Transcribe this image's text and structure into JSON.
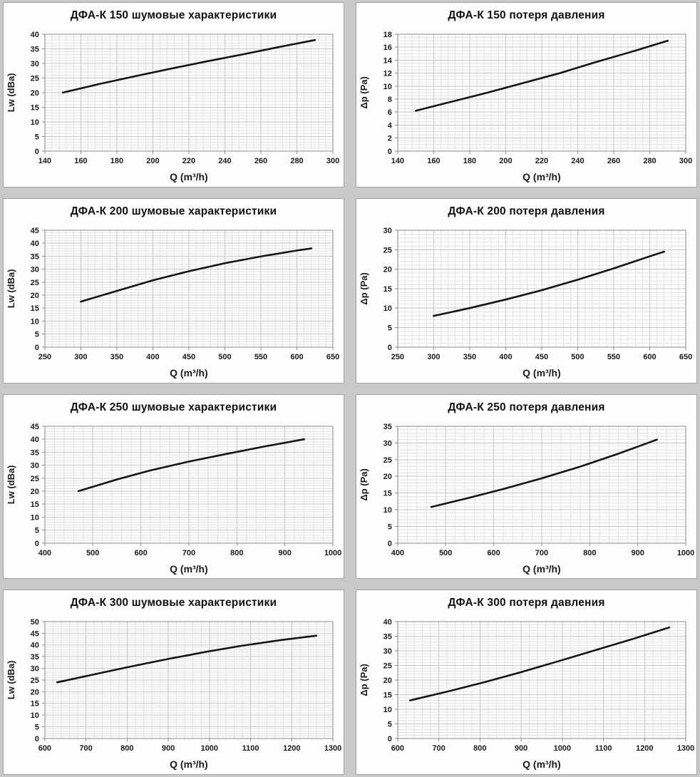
{
  "page": {
    "background_color": "#c9c9c9",
    "panel_background": "#fdfdfd",
    "panel_border_color": "#a3a3a3",
    "grid_minor_color": "#e4e4e4",
    "grid_major_color": "#c6c6c6",
    "plot_border_color": "#8c8c8c",
    "curve_color": "#141414",
    "text_color": "#1a1a1a"
  },
  "chart_data": [
    {
      "type": "line",
      "title": "ДФА-К 150 шумовые характеристики",
      "xlabel": "Q (m³/h)",
      "ylabel": "Lw (dBa)",
      "xlim": [
        140,
        300
      ],
      "xstep": 20,
      "xminor": 4,
      "ylim": [
        0,
        40
      ],
      "ystep": 5,
      "yminor": 1,
      "grid": true,
      "legend": null,
      "points": [
        [
          150,
          20
        ],
        [
          170,
          22.9
        ],
        [
          190,
          25.6
        ],
        [
          210,
          28.2
        ],
        [
          230,
          30.7
        ],
        [
          250,
          33.1
        ],
        [
          270,
          35.6
        ],
        [
          290,
          38
        ]
      ]
    },
    {
      "type": "line",
      "title": "ДФА-К 150 потеря давления",
      "xlabel": "Q (m³/h)",
      "ylabel": "Δp (Pa)",
      "xlim": [
        140,
        300
      ],
      "xstep": 20,
      "xminor": 4,
      "ylim": [
        0,
        18
      ],
      "ystep": 2,
      "yminor": 0.5,
      "grid": true,
      "legend": null,
      "points": [
        [
          150,
          6.2
        ],
        [
          170,
          7.6
        ],
        [
          190,
          9.0
        ],
        [
          210,
          10.5
        ],
        [
          230,
          12.0
        ],
        [
          250,
          13.7
        ],
        [
          270,
          15.3
        ],
        [
          290,
          17
        ]
      ]
    },
    {
      "type": "line",
      "title": "ДФА-К 200 шумовые характеристики",
      "xlabel": "Q (m³/h)",
      "ylabel": "Lw (dBa)",
      "xlim": [
        250,
        650
      ],
      "xstep": 50,
      "xminor": 10,
      "ylim": [
        0,
        45
      ],
      "ystep": 5,
      "yminor": 1,
      "grid": true,
      "legend": null,
      "points": [
        [
          300,
          17.5
        ],
        [
          350,
          21.6
        ],
        [
          400,
          25.7
        ],
        [
          450,
          29.2
        ],
        [
          500,
          32.3
        ],
        [
          550,
          34.9
        ],
        [
          600,
          37.2
        ],
        [
          620,
          38
        ]
      ]
    },
    {
      "type": "line",
      "title": "ДФА-К 200 потеря давления",
      "xlabel": "Q (m³/h)",
      "ylabel": "Δp (Pa)",
      "xlim": [
        250,
        650
      ],
      "xstep": 50,
      "xminor": 10,
      "ylim": [
        0,
        30
      ],
      "ystep": 5,
      "yminor": 1,
      "grid": true,
      "legend": null,
      "points": [
        [
          300,
          8
        ],
        [
          350,
          10
        ],
        [
          400,
          12.2
        ],
        [
          450,
          14.6
        ],
        [
          500,
          17.3
        ],
        [
          550,
          20.2
        ],
        [
          600,
          23.3
        ],
        [
          620,
          24.5
        ]
      ]
    },
    {
      "type": "line",
      "title": "ДФА-К 250 шумовые характеристики",
      "xlabel": "Q (m³/h)",
      "ylabel": "Lw (dBa)",
      "xlim": [
        400,
        1000
      ],
      "xstep": 100,
      "xminor": 20,
      "ylim": [
        0,
        45
      ],
      "ystep": 5,
      "yminor": 1,
      "grid": true,
      "legend": null,
      "points": [
        [
          470,
          20
        ],
        [
          550,
          24.5
        ],
        [
          620,
          28
        ],
        [
          700,
          31.4
        ],
        [
          780,
          34.4
        ],
        [
          860,
          37.3
        ],
        [
          940,
          40
        ]
      ]
    },
    {
      "type": "line",
      "title": "ДФА-К 250 потеря давления",
      "xlabel": "Q (m³/h)",
      "ylabel": "Δp (Pa)",
      "xlim": [
        400,
        1000
      ],
      "xstep": 100,
      "xminor": 20,
      "ylim": [
        0,
        35
      ],
      "ystep": 5,
      "yminor": 1,
      "grid": true,
      "legend": null,
      "points": [
        [
          470,
          10.8
        ],
        [
          550,
          13.6
        ],
        [
          620,
          16.2
        ],
        [
          700,
          19.4
        ],
        [
          780,
          22.9
        ],
        [
          860,
          26.8
        ],
        [
          940,
          31
        ]
      ]
    },
    {
      "type": "line",
      "title": "ДФА-К 300 шумовые характеристики",
      "xlabel": "Q (m³/h)",
      "ylabel": "Lw (dBa)",
      "xlim": [
        600,
        1300
      ],
      "xstep": 100,
      "xminor": 20,
      "ylim": [
        0,
        50
      ],
      "ystep": 5,
      "yminor": 1,
      "grid": true,
      "legend": null,
      "points": [
        [
          630,
          24
        ],
        [
          720,
          27.4
        ],
        [
          810,
          30.8
        ],
        [
          900,
          34
        ],
        [
          990,
          37
        ],
        [
          1080,
          39.7
        ],
        [
          1170,
          42
        ],
        [
          1260,
          44
        ]
      ]
    },
    {
      "type": "line",
      "title": "ДФА-К 300 потеря давления",
      "xlabel": "Q (m³/h)",
      "ylabel": "Δp (Pa)",
      "xlim": [
        600,
        1300
      ],
      "xstep": 100,
      "xminor": 20,
      "ylim": [
        0,
        40
      ],
      "ystep": 5,
      "yminor": 1,
      "grid": true,
      "legend": null,
      "points": [
        [
          630,
          13
        ],
        [
          720,
          16
        ],
        [
          810,
          19.2
        ],
        [
          900,
          22.7
        ],
        [
          990,
          26.4
        ],
        [
          1080,
          30.2
        ],
        [
          1170,
          34
        ],
        [
          1260,
          38
        ]
      ]
    }
  ]
}
